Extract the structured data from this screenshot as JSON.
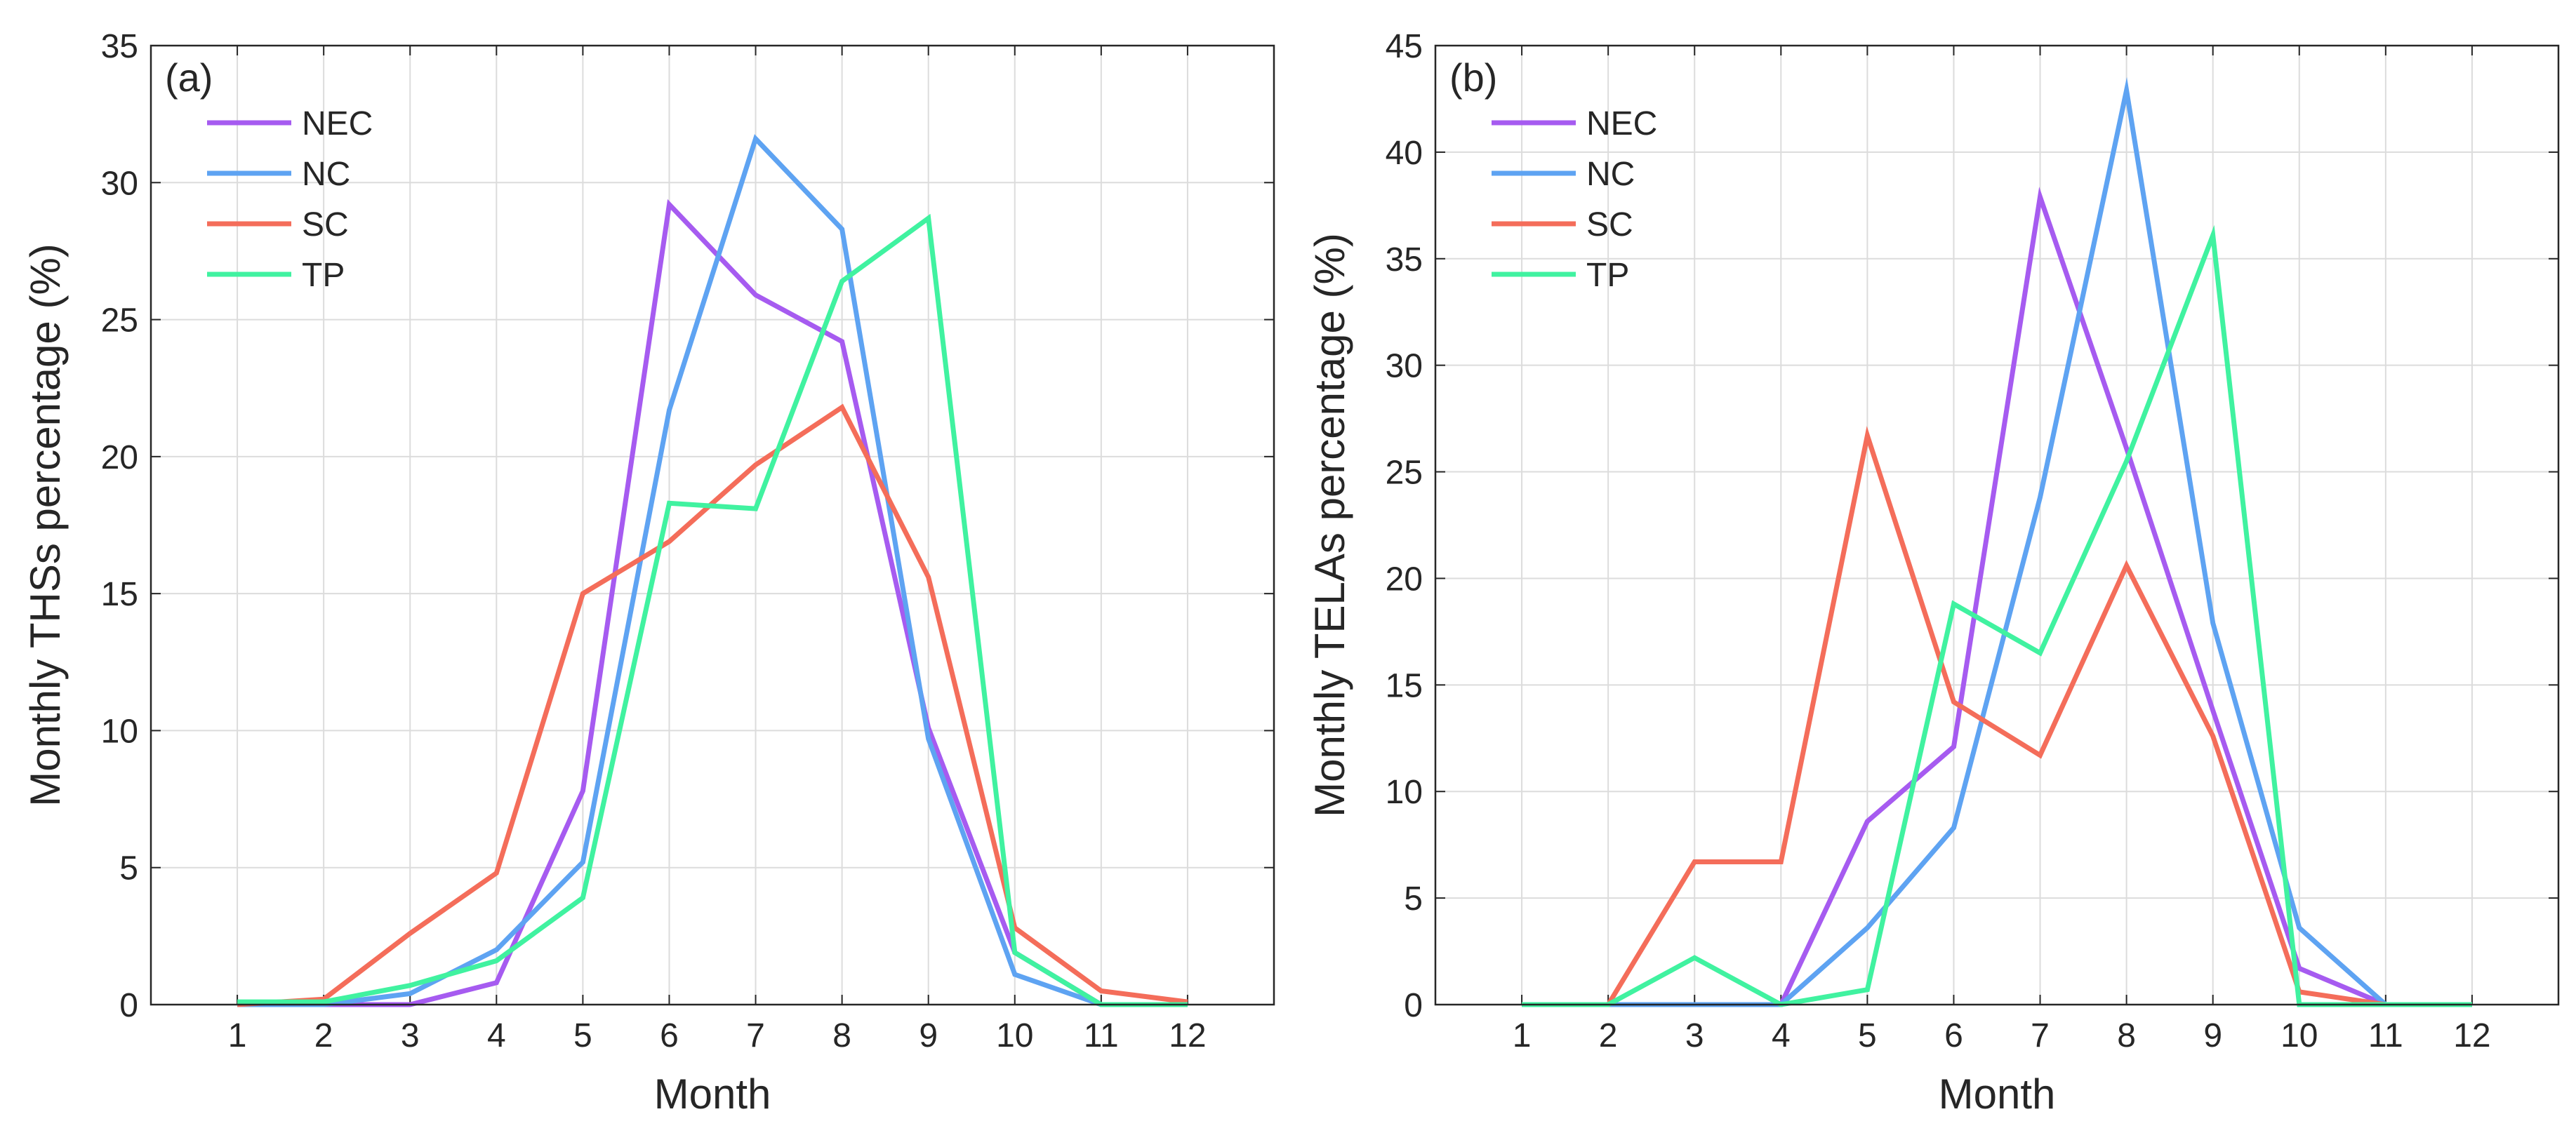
{
  "chart_data": [
    {
      "type": "line",
      "panel_label": "(a)",
      "xlabel": "Month",
      "ylabel": "Monthly THSs percentage (%)",
      "xlim": [
        0,
        13
      ],
      "ylim": [
        0,
        35
      ],
      "xticks": [
        1,
        2,
        3,
        4,
        5,
        6,
        7,
        8,
        9,
        10,
        11,
        12
      ],
      "yticks": [
        0,
        5,
        10,
        15,
        20,
        25,
        30,
        35
      ],
      "grid": true,
      "legend": "top-left",
      "x": [
        1,
        2,
        3,
        4,
        5,
        6,
        7,
        8,
        9,
        10,
        11,
        12
      ],
      "series": [
        {
          "name": "NEC",
          "color": "#a65bf0",
          "values": [
            0.0,
            0.0,
            0.0,
            0.8,
            7.8,
            29.2,
            25.9,
            24.2,
            10.1,
            1.9,
            0.0,
            0.0
          ]
        },
        {
          "name": "NC",
          "color": "#5ea3f2",
          "values": [
            0.0,
            0.0,
            0.4,
            2.0,
            5.2,
            21.7,
            31.6,
            28.3,
            9.7,
            1.1,
            0.0,
            0.0
          ]
        },
        {
          "name": "SC",
          "color": "#f46d5a",
          "values": [
            0.0,
            0.2,
            2.6,
            4.8,
            15.0,
            16.9,
            19.7,
            21.8,
            15.6,
            2.8,
            0.5,
            0.1
          ]
        },
        {
          "name": "TP",
          "color": "#40f2a0",
          "values": [
            0.1,
            0.1,
            0.7,
            1.6,
            3.9,
            18.3,
            18.1,
            26.4,
            28.7,
            1.9,
            0.0,
            0.0
          ]
        }
      ]
    },
    {
      "type": "line",
      "panel_label": "(b)",
      "xlabel": "Month",
      "ylabel": "Monthly TELAs percentage (%)",
      "xlim": [
        0,
        13
      ],
      "ylim": [
        0,
        45
      ],
      "xticks": [
        1,
        2,
        3,
        4,
        5,
        6,
        7,
        8,
        9,
        10,
        11,
        12
      ],
      "yticks": [
        0,
        5,
        10,
        15,
        20,
        25,
        30,
        35,
        40,
        45
      ],
      "grid": true,
      "legend": "top-left",
      "x": [
        1,
        2,
        3,
        4,
        5,
        6,
        7,
        8,
        9,
        10,
        11,
        12
      ],
      "series": [
        {
          "name": "NEC",
          "color": "#a65bf0",
          "values": [
            0.0,
            0.0,
            0.0,
            0.0,
            8.6,
            12.1,
            37.9,
            26.1,
            13.8,
            1.7,
            0.0,
            0.0
          ]
        },
        {
          "name": "NC",
          "color": "#5ea3f2",
          "values": [
            0.0,
            0.0,
            0.0,
            0.0,
            3.6,
            8.3,
            23.8,
            42.9,
            17.9,
            3.6,
            0.0,
            0.0
          ]
        },
        {
          "name": "SC",
          "color": "#f46d5a",
          "values": [
            0.0,
            0.0,
            6.7,
            6.7,
            26.7,
            14.2,
            11.7,
            20.6,
            12.6,
            0.6,
            0.0,
            0.0
          ]
        },
        {
          "name": "TP",
          "color": "#40f2a0",
          "values": [
            0.0,
            0.0,
            2.2,
            0.0,
            0.7,
            18.8,
            16.5,
            25.5,
            36.1,
            0.0,
            0.0,
            0.0
          ]
        }
      ]
    }
  ]
}
